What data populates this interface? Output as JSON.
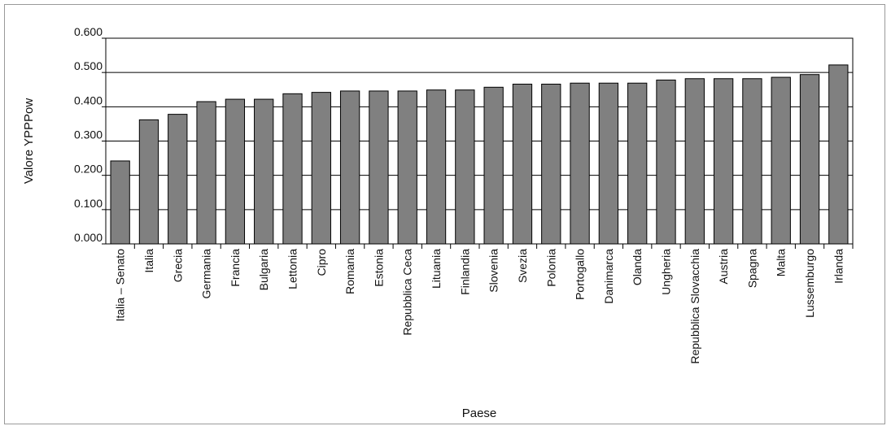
{
  "chart_data": {
    "type": "bar",
    "title": "",
    "xlabel": "Paese",
    "ylabel": "Valore YPPPow",
    "ylim": [
      0,
      0.6
    ],
    "yticks": [
      "0.000",
      "0.100",
      "0.200",
      "0.300",
      "0.400",
      "0.500",
      "0.600"
    ],
    "grid": true,
    "colors": {
      "bar": "#808080",
      "bar_border": "#000000",
      "grid": "#000000"
    },
    "categories": [
      "Italia – Senato",
      "Italia",
      "Grecia",
      "Germania",
      "Francia",
      "Bulgaria",
      "Lettonia",
      "Cipro",
      "Romania",
      "Estonia",
      "Repubblica Ceca",
      "Lituania",
      "Finlandia",
      "Slovenia",
      "Svezia",
      "Polonia",
      "Portogallo",
      "Danimarca",
      "Olanda",
      "Ungheria",
      "Repubblica Slovacchia",
      "Austria",
      "Spagna",
      "Malta",
      "Lussemburgo",
      "Irlanda"
    ],
    "values": [
      0.242,
      0.362,
      0.378,
      0.415,
      0.422,
      0.422,
      0.438,
      0.442,
      0.446,
      0.446,
      0.446,
      0.449,
      0.449,
      0.457,
      0.466,
      0.466,
      0.469,
      0.469,
      0.469,
      0.478,
      0.482,
      0.482,
      0.482,
      0.486,
      0.494,
      0.522
    ]
  }
}
